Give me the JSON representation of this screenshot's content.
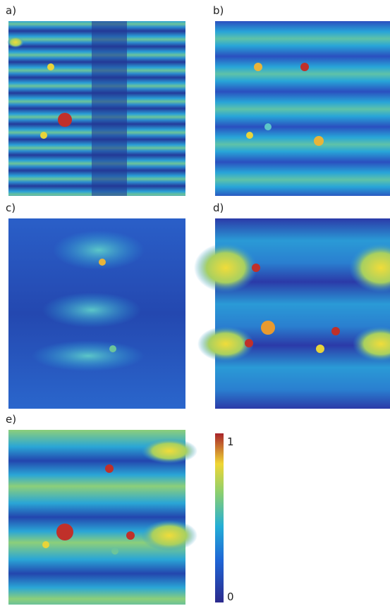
{
  "panels": [
    {
      "label": "a)"
    },
    {
      "label": "b)"
    },
    {
      "label": "c)"
    },
    {
      "label": "d)"
    },
    {
      "label": "e)"
    }
  ],
  "colorbar": {
    "ticks": [
      "1",
      "0"
    ]
  }
}
